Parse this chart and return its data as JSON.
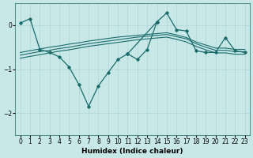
{
  "xlabel": "Humidex (Indice chaleur)",
  "ylabel": "",
  "background_color": "#c8e8e8",
  "grid_color": "#b0d4d4",
  "line_color": "#1a6b6b",
  "xlim": [
    -0.5,
    23.5
  ],
  "ylim": [
    -2.5,
    0.5
  ],
  "yticks": [
    -2,
    -1,
    0
  ],
  "xticks": [
    0,
    1,
    2,
    3,
    4,
    5,
    6,
    7,
    8,
    9,
    10,
    11,
    12,
    13,
    14,
    15,
    16,
    17,
    18,
    19,
    20,
    21,
    22,
    23
  ],
  "series": [
    {
      "x": [
        0,
        1,
        2,
        3,
        4,
        5,
        6,
        7,
        8,
        9,
        10,
        11,
        12,
        13,
        14,
        15,
        16,
        17,
        18,
        19,
        20,
        21,
        22,
        23
      ],
      "y": [
        -0.62,
        -0.58,
        -0.54,
        -0.5,
        -0.47,
        -0.43,
        -0.4,
        -0.36,
        -0.33,
        -0.3,
        -0.27,
        -0.25,
        -0.23,
        -0.21,
        -0.19,
        -0.17,
        -0.22,
        -0.28,
        -0.38,
        -0.45,
        -0.52,
        -0.52,
        -0.55,
        -0.55
      ],
      "style": "line"
    },
    {
      "x": [
        0,
        1,
        2,
        3,
        4,
        5,
        6,
        7,
        8,
        9,
        10,
        11,
        12,
        13,
        14,
        15,
        16,
        17,
        18,
        19,
        20,
        21,
        22,
        23
      ],
      "y": [
        -0.68,
        -0.64,
        -0.6,
        -0.57,
        -0.53,
        -0.5,
        -0.46,
        -0.42,
        -0.39,
        -0.36,
        -0.33,
        -0.3,
        -0.27,
        -0.25,
        -0.23,
        -0.21,
        -0.26,
        -0.31,
        -0.42,
        -0.5,
        -0.57,
        -0.57,
        -0.6,
        -0.6
      ],
      "style": "line"
    },
    {
      "x": [
        0,
        1,
        2,
        3,
        4,
        5,
        6,
        7,
        8,
        9,
        10,
        11,
        12,
        13,
        14,
        15,
        16,
        17,
        18,
        19,
        20,
        21,
        22,
        23
      ],
      "y": [
        -0.75,
        -0.71,
        -0.67,
        -0.63,
        -0.59,
        -0.56,
        -0.52,
        -0.48,
        -0.45,
        -0.42,
        -0.39,
        -0.36,
        -0.33,
        -0.31,
        -0.29,
        -0.27,
        -0.32,
        -0.38,
        -0.48,
        -0.56,
        -0.63,
        -0.63,
        -0.66,
        -0.66
      ],
      "style": "line"
    },
    {
      "x": [
        0,
        1,
        2,
        3,
        4,
        5,
        6,
        7,
        8,
        9,
        10,
        11,
        14,
        15,
        16,
        17,
        18,
        19,
        20,
        21,
        22,
        23
      ],
      "y": [
        0.05,
        0.15,
        -0.55,
        -0.62,
        -0.72,
        -0.95,
        -1.35,
        -1.85,
        -1.38,
        -1.08,
        -0.78,
        -0.65,
        0.08,
        0.28,
        -0.1,
        -0.13,
        -0.58,
        -0.62,
        -0.62,
        -0.28,
        -0.58,
        -0.62
      ],
      "style": "line_marker"
    },
    {
      "x": [
        11,
        12,
        13,
        14
      ],
      "y": [
        -0.65,
        -0.78,
        -0.55,
        0.08
      ],
      "style": "line_marker"
    }
  ]
}
